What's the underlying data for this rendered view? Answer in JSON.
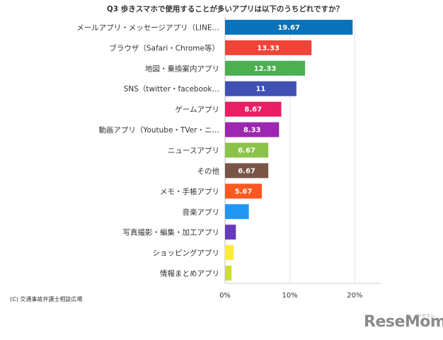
{
  "chart_data": {
    "type": "bar",
    "orientation": "horizontal",
    "title": "Q3 歩きスマホで使用することが多いアプリは以下のうちどれですか？",
    "categories": [
      "メールアプリ・メッセージアプリ（LINE…",
      "ブラウザ（Safari・Chrome等）",
      "地図・乗換案内アプリ",
      "SNS（twitter・facebook…",
      "ゲームアプリ",
      "動画アプリ（Youtube・TVer・ニ…",
      "ニュースアプリ",
      "その他",
      "メモ・手帳アプリ",
      "音楽アプリ",
      "写真撮影・編集・加工アプリ",
      "ショッピングアプリ",
      "情報まとめアプリ"
    ],
    "values": [
      19.67,
      13.33,
      12.33,
      11,
      8.67,
      8.33,
      6.67,
      6.67,
      5.67,
      3.67,
      1.67,
      1.33,
      1
    ],
    "value_labels": [
      "19.67",
      "13.33",
      "12.33",
      "11",
      "8.67",
      "8.33",
      "6.67",
      "6.67",
      "5.67",
      "",
      "",
      "",
      ""
    ],
    "colors": [
      "#0a72b8",
      "#f04438",
      "#4caf50",
      "#3f51b5",
      "#e91e63",
      "#9c27b0",
      "#8bc34a",
      "#795548",
      "#ff5722",
      "#2196f3",
      "#673ab7",
      "#ffeb3b",
      "#cddc39"
    ],
    "xlim": [
      0,
      24
    ],
    "xticks": [
      0,
      10,
      20
    ],
    "xtick_labels": [
      "0%",
      "10%",
      "20%"
    ],
    "grid": true,
    "legend": "none"
  },
  "source_text": "(C) 交通事故弁護士相談広場",
  "logo_text": "ReseMom",
  "logo_sub": "リセマム"
}
